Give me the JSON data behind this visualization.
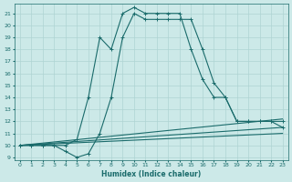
{
  "xlabel": "Humidex (Indice chaleur)",
  "xlim": [
    -0.5,
    23.5
  ],
  "ylim": [
    8.8,
    21.8
  ],
  "yticks": [
    9,
    10,
    11,
    12,
    13,
    14,
    15,
    16,
    17,
    18,
    19,
    20,
    21
  ],
  "xticks": [
    0,
    1,
    2,
    3,
    4,
    5,
    6,
    7,
    8,
    9,
    10,
    11,
    12,
    13,
    14,
    15,
    16,
    17,
    18,
    19,
    20,
    21,
    22,
    23
  ],
  "bg_color": "#cce9e8",
  "line_color": "#1a6b6b",
  "grid_color": "#aed4d3",
  "curves": [
    {
      "x": [
        0,
        1,
        2,
        3,
        4,
        5,
        6,
        7,
        8,
        9,
        10,
        11,
        12,
        13,
        14,
        15,
        16,
        17,
        18,
        19,
        20,
        21,
        22,
        23
      ],
      "y": [
        10,
        10,
        10,
        10,
        10,
        10.5,
        14,
        19,
        18,
        21,
        21.5,
        21,
        21,
        21,
        21,
        18,
        15.5,
        14,
        14,
        12,
        12,
        12,
        12,
        12
      ],
      "has_markers": true
    },
    {
      "x": [
        0,
        1,
        2,
        3,
        4,
        5,
        6,
        7,
        8,
        9,
        10,
        11,
        12,
        13,
        14,
        15,
        16,
        17,
        18,
        19,
        20,
        21,
        22,
        23
      ],
      "y": [
        10,
        10,
        10,
        10,
        9.5,
        9,
        9.3,
        11,
        14,
        19,
        21,
        20.5,
        20.5,
        20.5,
        20.5,
        20.5,
        18,
        15.2,
        14,
        12,
        12,
        12,
        12,
        11.5
      ],
      "has_markers": true
    },
    {
      "x": [
        0,
        23
      ],
      "y": [
        10,
        12.2
      ],
      "has_markers": false
    },
    {
      "x": [
        0,
        23
      ],
      "y": [
        10,
        11.5
      ],
      "has_markers": false
    },
    {
      "x": [
        0,
        23
      ],
      "y": [
        10,
        11.0
      ],
      "has_markers": false
    }
  ]
}
